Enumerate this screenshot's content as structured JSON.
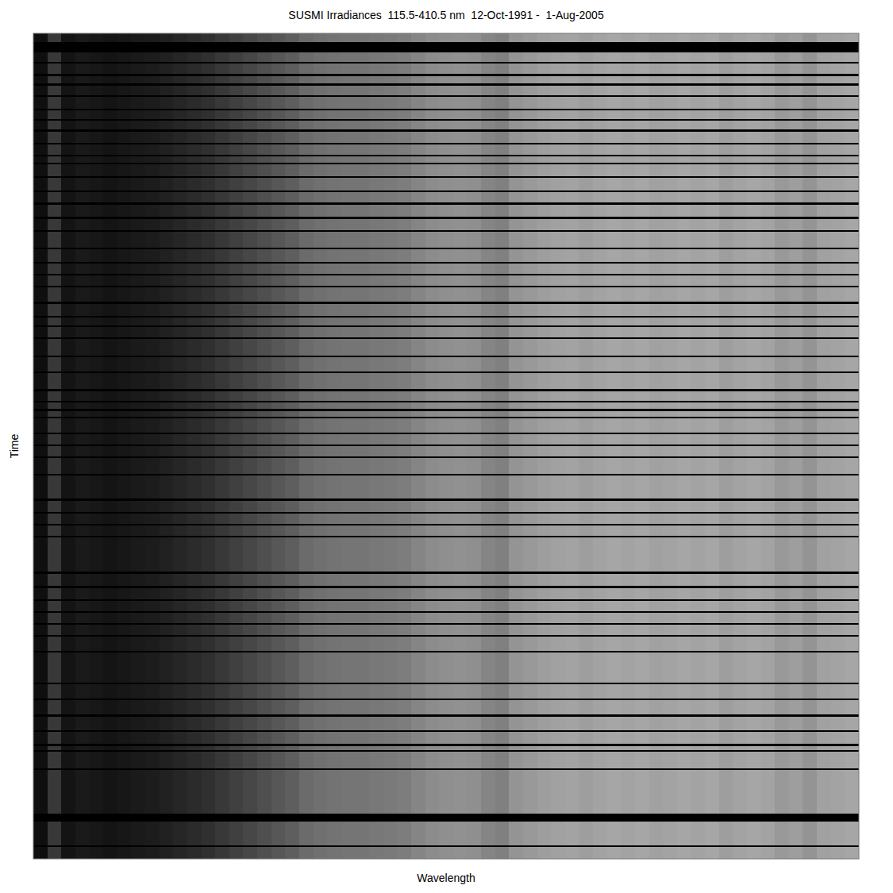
{
  "chart_data": {
    "type": "heatmap",
    "title": "SUSMI Irradiances  115.5-410.5 nm  12-Oct-1991 -  1-Aug-2005",
    "x_label": "Wavelength",
    "y_label": "Time",
    "tick_labels": false,
    "xlim": [
      115.5,
      410.5
    ],
    "ylim": [
      1991.78,
      2005.58
    ],
    "zlim": [
      0,
      1
    ],
    "xbins": [
      115.5,
      120.5,
      125.5,
      130.5,
      135.5,
      140.5,
      145.5,
      150.5,
      155.5,
      160.5,
      165.5,
      170.5,
      175.5,
      180.5,
      185.5,
      190.5,
      195.5,
      200.5,
      205.5,
      210.5,
      215.5,
      220.5,
      225.5,
      230.5,
      235.5,
      240.5,
      245.5,
      250.5,
      255.5,
      260.5,
      265.5,
      270.5,
      275.5,
      280.5,
      285.5,
      290.5,
      295.5,
      300.5,
      305.5,
      310.5,
      315.5,
      320.5,
      325.5,
      330.5,
      335.5,
      340.5,
      345.5,
      350.5,
      355.5,
      360.5,
      365.5,
      370.5,
      375.5,
      380.5,
      385.5,
      390.5,
      395.5,
      400.5,
      405.5,
      410.5
    ],
    "ybins": [
      1991.78,
      2005.58
    ],
    "cells": [
      [
        0.06,
        0.22,
        0.08,
        0.1,
        0.09,
        0.08,
        0.09,
        0.1,
        0.11,
        0.13,
        0.15,
        0.17,
        0.19,
        0.22,
        0.25,
        0.28,
        0.31,
        0.34,
        0.37,
        0.42,
        0.44,
        0.45,
        0.46,
        0.46,
        0.47,
        0.48,
        0.49,
        0.52,
        0.55,
        0.56,
        0.57,
        0.56,
        0.52,
        0.5,
        0.58,
        0.6,
        0.62,
        0.63,
        0.64,
        0.62,
        0.64,
        0.65,
        0.64,
        0.65,
        0.63,
        0.64,
        0.65,
        0.64,
        0.65,
        0.62,
        0.64,
        0.65,
        0.64,
        0.6,
        0.62,
        0.58,
        0.63,
        0.64,
        0.65
      ]
    ],
    "gaps": [
      {
        "start": 1991.93,
        "end": 1992.1
      },
      {
        "start": 1992.26,
        "end": 1992.29
      },
      {
        "start": 1992.46,
        "end": 1992.49
      },
      {
        "start": 1992.62,
        "end": 1992.65
      },
      {
        "start": 1992.81,
        "end": 1992.84
      },
      {
        "start": 1993.04,
        "end": 1993.07
      },
      {
        "start": 1993.21,
        "end": 1993.24
      },
      {
        "start": 1993.39,
        "end": 1993.42
      },
      {
        "start": 1993.61,
        "end": 1993.64
      },
      {
        "start": 1993.81,
        "end": 1993.84
      },
      {
        "start": 1993.94,
        "end": 1993.97
      },
      {
        "start": 1994.17,
        "end": 1994.2
      },
      {
        "start": 1994.41,
        "end": 1994.44
      },
      {
        "start": 1994.61,
        "end": 1994.64
      },
      {
        "start": 1994.85,
        "end": 1994.88
      },
      {
        "start": 1995.07,
        "end": 1995.1
      },
      {
        "start": 1995.36,
        "end": 1995.39
      },
      {
        "start": 1995.6,
        "end": 1995.63
      },
      {
        "start": 1995.8,
        "end": 1995.83
      },
      {
        "start": 1996.0,
        "end": 1996.03
      },
      {
        "start": 1996.27,
        "end": 1996.3
      },
      {
        "start": 1996.5,
        "end": 1996.53
      },
      {
        "start": 1996.66,
        "end": 1996.69
      },
      {
        "start": 1996.86,
        "end": 1996.89
      },
      {
        "start": 1997.17,
        "end": 1997.2
      },
      {
        "start": 1997.43,
        "end": 1997.46
      },
      {
        "start": 1997.73,
        "end": 1997.76
      },
      {
        "start": 1997.92,
        "end": 1997.95
      },
      {
        "start": 1998.06,
        "end": 1998.09
      },
      {
        "start": 1998.19,
        "end": 1998.22
      },
      {
        "start": 1998.45,
        "end": 1998.48
      },
      {
        "start": 1998.65,
        "end": 1998.68
      },
      {
        "start": 1998.85,
        "end": 1998.88
      },
      {
        "start": 1999.14,
        "end": 1999.17
      },
      {
        "start": 1999.56,
        "end": 1999.59
      },
      {
        "start": 1999.78,
        "end": 1999.81
      },
      {
        "start": 1999.98,
        "end": 2000.01
      },
      {
        "start": 2000.18,
        "end": 2000.21
      },
      {
        "start": 2000.78,
        "end": 2000.81
      },
      {
        "start": 2001.02,
        "end": 2001.05
      },
      {
        "start": 2001.24,
        "end": 2001.27
      },
      {
        "start": 2001.44,
        "end": 2001.47
      },
      {
        "start": 2001.64,
        "end": 2001.67
      },
      {
        "start": 2001.84,
        "end": 2001.87
      },
      {
        "start": 2002.1,
        "end": 2002.13
      },
      {
        "start": 2002.63,
        "end": 2002.66
      },
      {
        "start": 2002.9,
        "end": 2002.93
      },
      {
        "start": 2003.17,
        "end": 2003.2
      },
      {
        "start": 2003.43,
        "end": 2003.46
      },
      {
        "start": 2003.66,
        "end": 2003.69
      },
      {
        "start": 2003.76,
        "end": 2003.79
      },
      {
        "start": 2004.07,
        "end": 2004.1
      },
      {
        "start": 2004.82,
        "end": 2004.96
      },
      {
        "start": 2005.35,
        "end": 2005.38
      }
    ]
  }
}
